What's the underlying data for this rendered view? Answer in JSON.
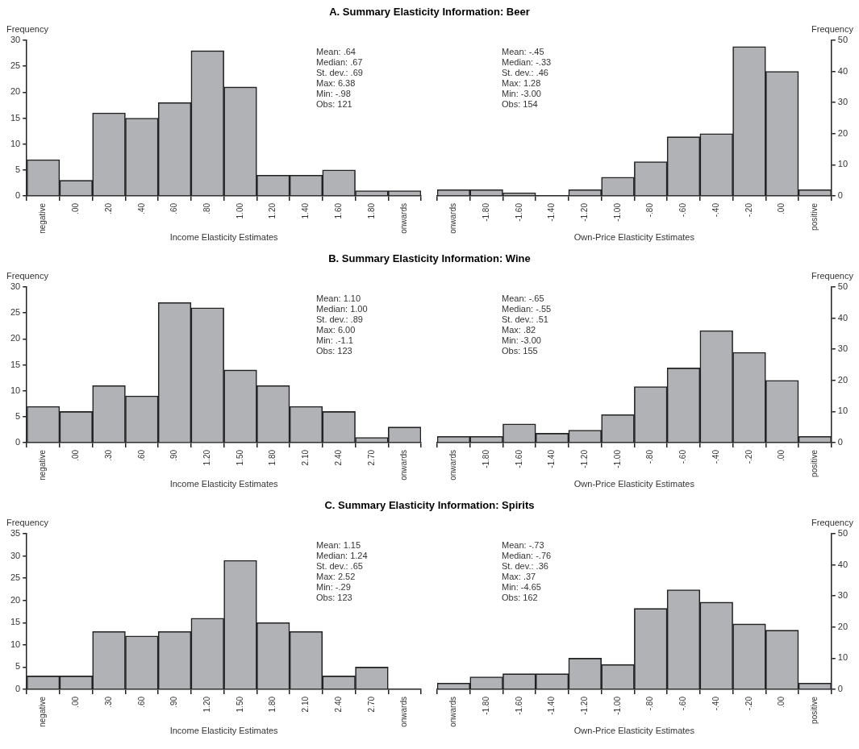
{
  "chart_data": [
    {
      "type": "bar",
      "title": "A. Summary Elasticity Information: Beer",
      "ylabel": "Frequency",
      "xlabel": "Income Elasticity Estimates",
      "categories": [
        "negative",
        ".00",
        ".20",
        ".40",
        ".60",
        ".80",
        "1.00",
        "1.20",
        "1.40",
        "1.60",
        "1.80",
        "onwards"
      ],
      "values": [
        7,
        3,
        16,
        15,
        18,
        28,
        21,
        4,
        4,
        5,
        1,
        1
      ],
      "color": "#b1b2b5",
      "ylim": [
        0,
        30
      ],
      "yticks": [
        0,
        5,
        10,
        15,
        20,
        25,
        30
      ],
      "annotations": [
        "Mean: .64",
        "Median: .67",
        "St. dev.: .69",
        "Max: 6.38",
        "Min: -.98",
        "Obs: 121"
      ]
    },
    {
      "type": "bar",
      "y2label": "Frequency",
      "xlabel": "Own-Price Elasticity Estimates",
      "categories": [
        "onwards",
        "-1.80",
        "-1.60",
        "-1.40",
        "-1.20",
        "-1.00",
        "-.80",
        "-.60",
        "-.40",
        "-.20",
        ".00",
        "positive"
      ],
      "series": [
        {
          "values": [
            2,
            2,
            1,
            0,
            2,
            6,
            11,
            19,
            20,
            48,
            40,
            2
          ],
          "color": "#b1b2b5",
          "axis": "y2"
        }
      ],
      "y2lim": [
        0,
        50
      ],
      "y2ticks": [
        0,
        10,
        20,
        30,
        40,
        50
      ],
      "annotations": [
        "Mean: -.45",
        "Median: -.33",
        "St. dev.: .46",
        "Max: 1.28",
        "Min: -3.00",
        "Obs: 154"
      ]
    },
    {
      "type": "bar",
      "title": "B. Summary Elasticity Information: Wine",
      "ylabel": "Frequency",
      "xlabel": "Income Elasticity Estimates",
      "categories": [
        "negative",
        ".00",
        ".30",
        ".60",
        ".90",
        "1.20",
        "1.50",
        "1.80",
        "2.10",
        "2.40",
        "2.70",
        "onwards"
      ],
      "values": [
        7,
        6,
        11,
        9,
        27,
        26,
        14,
        11,
        7,
        6,
        1,
        3
      ],
      "color": "#b1b2b5",
      "ylim": [
        0,
        30
      ],
      "yticks": [
        0,
        5,
        10,
        15,
        20,
        25,
        30
      ],
      "annotations": [
        "Mean: 1.10",
        "Median: 1.00",
        "St. dev.: .89",
        "Max: 6.00",
        "Min: .-1.1",
        "Obs: 123"
      ]
    },
    {
      "type": "bar",
      "y2label": "Frequency",
      "xlabel": "Own-Price Elasticity Estimates",
      "categories": [
        "onwards",
        "-1.80",
        "-1.60",
        "-1.40",
        "-1.20",
        "-1.00",
        "-.80",
        "-.60",
        "-.40",
        "-.20",
        ".00",
        "positive"
      ],
      "series": [
        {
          "values": [
            2,
            2,
            6,
            3,
            4,
            9,
            18,
            24,
            36,
            29,
            20,
            2
          ],
          "color": "#b1b2b5",
          "axis": "y2"
        }
      ],
      "y2lim": [
        0,
        50
      ],
      "y2ticks": [
        0,
        10,
        20,
        30,
        40,
        50
      ],
      "annotations": [
        "Mean: -.65",
        "Median: -.55",
        "St. dev.: .51",
        "Max: .82",
        "Min: -3.00",
        "Obs: 155"
      ]
    },
    {
      "type": "bar",
      "title": "C. Summary Elasticity Information: Spirits",
      "ylabel": "Frequency",
      "xlabel": "Income Elasticity Estimates",
      "categories": [
        "negative",
        ".00",
        ".30",
        ".60",
        ".90",
        "1.20",
        "1.50",
        "1.80",
        "2.10",
        "2.40",
        "2.70",
        "onwards"
      ],
      "values": [
        3,
        3,
        13,
        12,
        13,
        16,
        29,
        15,
        13,
        3,
        5,
        0
      ],
      "color": "#b1b2b5",
      "ylim": [
        0,
        35
      ],
      "yticks": [
        0,
        5,
        10,
        15,
        20,
        25,
        30,
        35
      ],
      "annotations": [
        "Mean: 1.15",
        "Median: 1.24",
        "St. dev.: .65",
        "Max: 2.52",
        "Min: -.29",
        "Obs: 123"
      ]
    },
    {
      "type": "bar",
      "y2label": "Frequency",
      "xlabel": "Own-Price Elasticity Estimates",
      "categories": [
        "onwards",
        "-1.80",
        "-1.60",
        "-1.40",
        "-1.20",
        "-1.00",
        "-.80",
        "-.60",
        "-.40",
        "-.20",
        ".00",
        "positive"
      ],
      "series": [
        {
          "values": [
            2,
            4,
            5,
            5,
            10,
            8,
            26,
            32,
            28,
            21,
            19,
            2
          ],
          "color": "#b1b2b5",
          "axis": "y2"
        }
      ],
      "y2lim": [
        0,
        50
      ],
      "y2ticks": [
        0,
        10,
        20,
        30,
        40,
        50
      ],
      "annotations": [
        "Mean: -.73",
        "Median: -.76",
        "St. dev.: .36",
        "Max: .37",
        "Min: -4.65",
        "Obs: 162"
      ]
    }
  ]
}
